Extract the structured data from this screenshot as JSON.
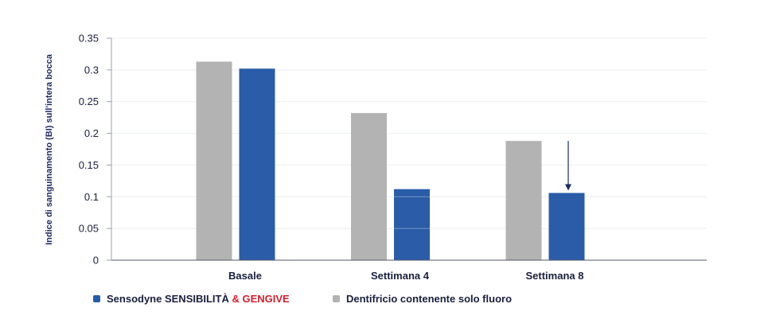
{
  "chart_data": {
    "type": "bar",
    "categories": [
      "Basale",
      "Settimana 4",
      "Settimana 8"
    ],
    "series": [
      {
        "name": "Dentifricio contenente solo fluoro",
        "color": "#b3b3b3",
        "values": [
          0.313,
          0.232,
          0.188
        ]
      },
      {
        "name": "Sensodyne SENSIBILITÀ & GENGIVE",
        "color": "#2a5ca8",
        "values": [
          0.302,
          0.112,
          0.106
        ]
      }
    ],
    "ylabel": "Indice di sanguinamento (BI) sull'intera bocca",
    "yticks": [
      "0",
      "0.05",
      "0.1",
      "0.15",
      "0.2",
      "0.25",
      "0.3",
      "0.35"
    ],
    "ylim": [
      0,
      0.35
    ],
    "grid": true,
    "annotation": {
      "type": "arrow",
      "category": "Settimana 8",
      "series": "Sensodyne SENSIBILITÀ & GENGIVE",
      "from": 0.188,
      "to": 0.106
    }
  },
  "legend": {
    "item1_prefix": "Sensodyne SENSIBILITÀ",
    "item1_accent": " & GENGIVE",
    "item2": "Dentifricio contenente solo fluoro"
  },
  "colors": {
    "blue": "#2a5ca8",
    "gray": "#b3b3b3",
    "accent": "#d0202e",
    "text": "#1a1f3c"
  }
}
